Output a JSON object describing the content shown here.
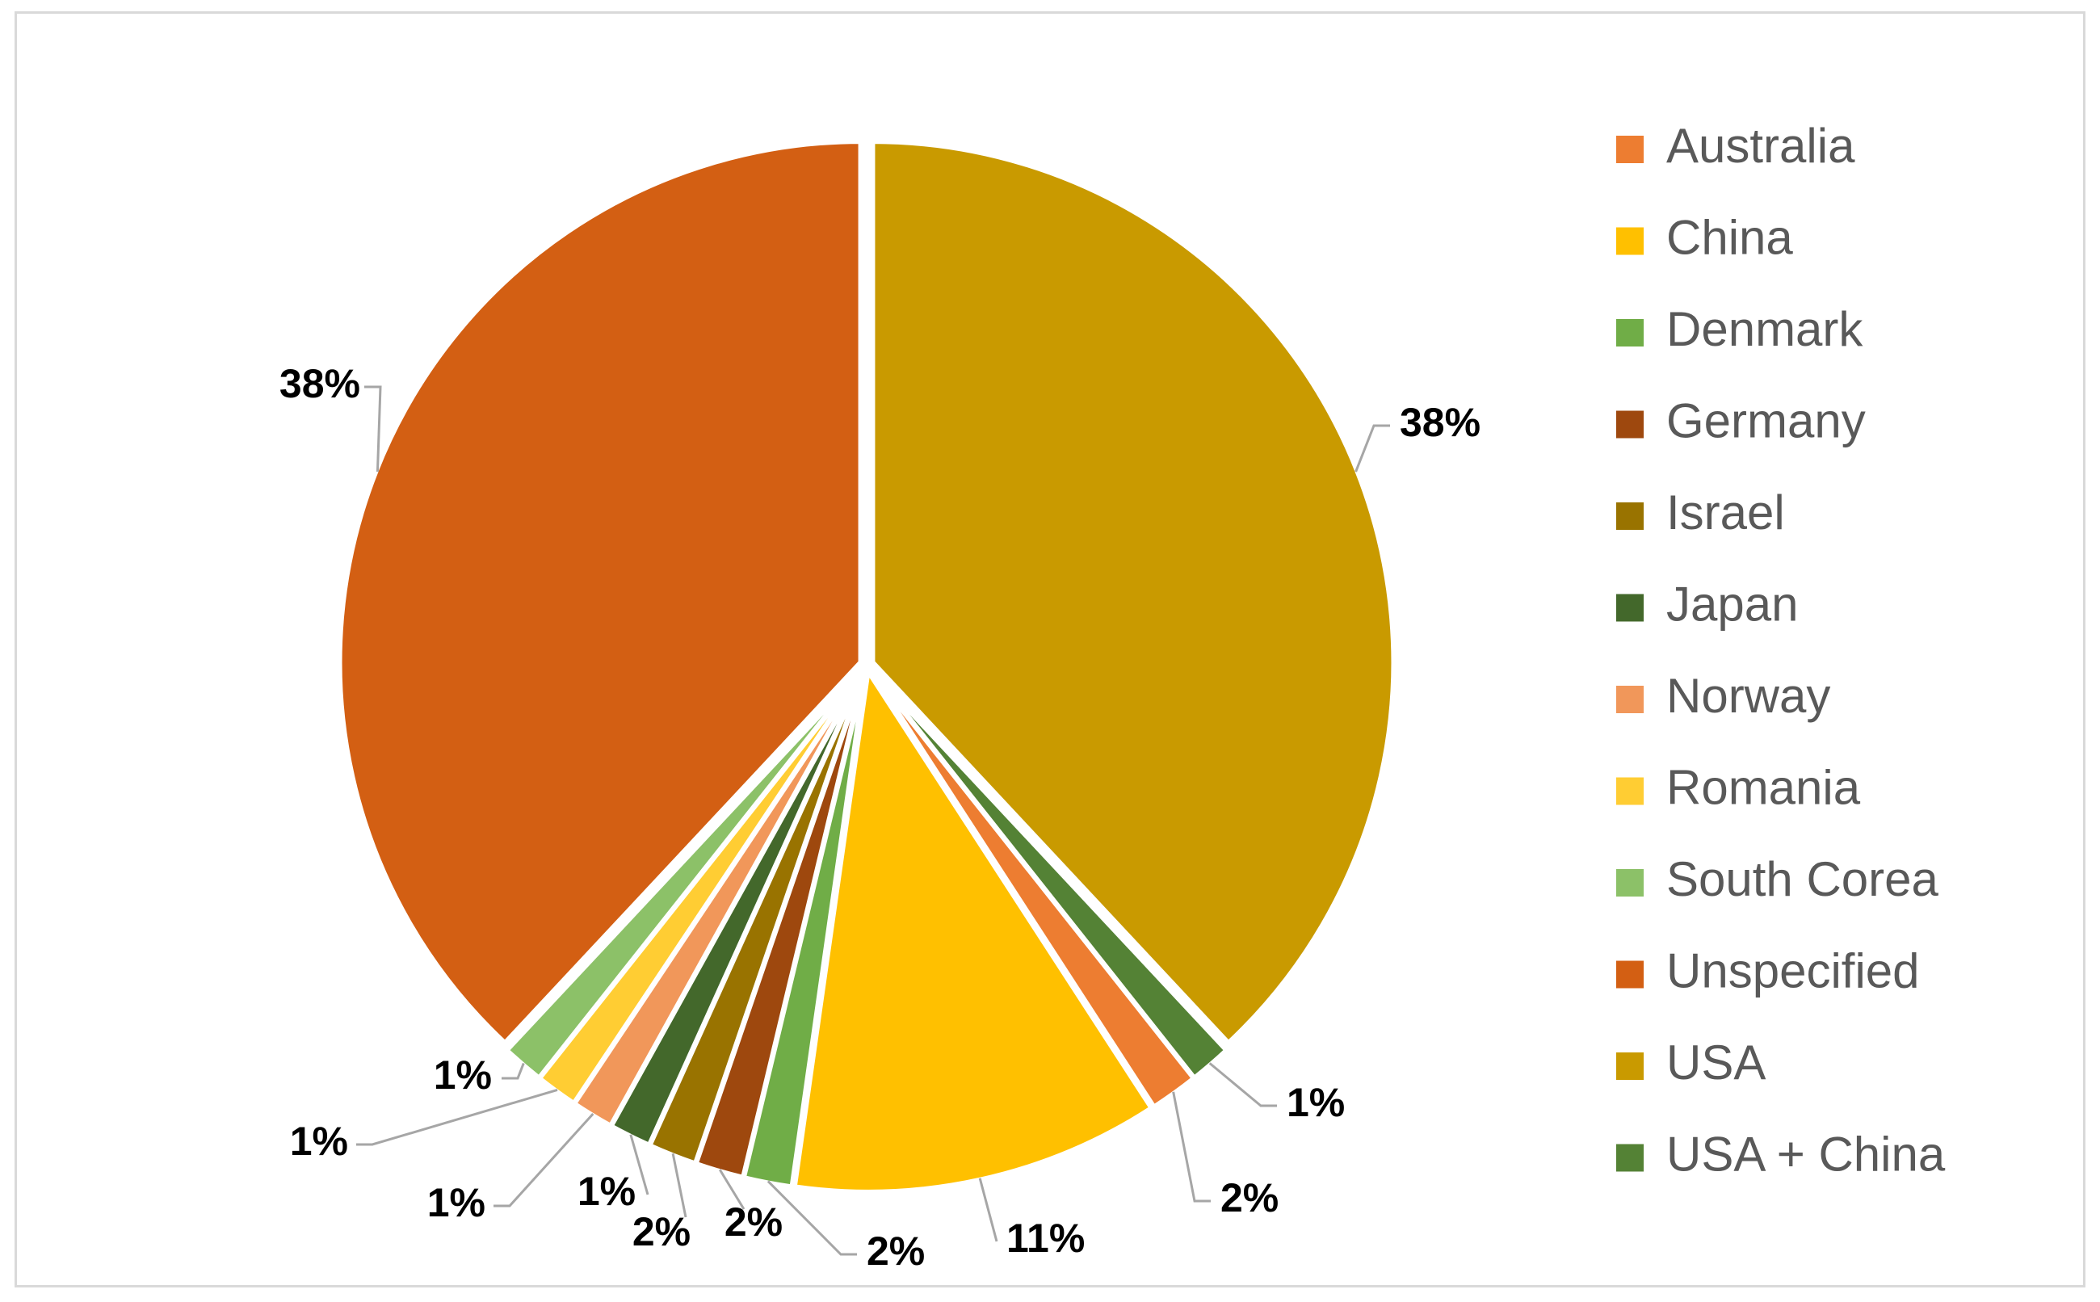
{
  "chart_data": {
    "type": "pie",
    "title": "",
    "legend_position": "right",
    "start_angle_deg": 0,
    "direction": "clockwise",
    "slices": [
      {
        "label": "USA",
        "value": 38,
        "display": "38%",
        "color": "#C99A00"
      },
      {
        "label": "USA + China",
        "value": 1.3,
        "display": "1%",
        "color": "#548235"
      },
      {
        "label": "Australia",
        "value": 1.5,
        "display": "2%",
        "color": "#ED7D31"
      },
      {
        "label": "China",
        "value": 11.4,
        "display": "11%",
        "color": "#FFC000"
      },
      {
        "label": "Denmark",
        "value": 1.5,
        "display": "2%",
        "color": "#70AD47"
      },
      {
        "label": "Germany",
        "value": 1.5,
        "display": "2%",
        "color": "#9E480E"
      },
      {
        "label": "Israel",
        "value": 1.5,
        "display": "2%",
        "color": "#997300"
      },
      {
        "label": "Japan",
        "value": 1.3,
        "display": "1%",
        "color": "#43682B"
      },
      {
        "label": "Norway",
        "value": 1.3,
        "display": "1%",
        "color": "#F1975A"
      },
      {
        "label": "Romania",
        "value": 1.3,
        "display": "1%",
        "color": "#FFCD33"
      },
      {
        "label": "South Corea",
        "value": 1.3,
        "display": "1%",
        "color": "#8CC168"
      },
      {
        "label": "Unspecified",
        "value": 38,
        "display": "38%",
        "color": "#D35F13"
      }
    ],
    "legend": [
      {
        "label": "Australia",
        "color": "#ED7D31"
      },
      {
        "label": "China",
        "color": "#FFC000"
      },
      {
        "label": "Denmark",
        "color": "#70AD47"
      },
      {
        "label": "Germany",
        "color": "#9E480E"
      },
      {
        "label": "Israel",
        "color": "#997300"
      },
      {
        "label": "Japan",
        "color": "#43682B"
      },
      {
        "label": "Norway",
        "color": "#F1975A"
      },
      {
        "label": "Romania",
        "color": "#FFCD33"
      },
      {
        "label": "South Corea",
        "color": "#8CC168"
      },
      {
        "label": "Unspecified",
        "color": "#D35F13"
      },
      {
        "label": "USA",
        "color": "#C99A00"
      },
      {
        "label": "USA + China",
        "color": "#548235"
      }
    ]
  }
}
